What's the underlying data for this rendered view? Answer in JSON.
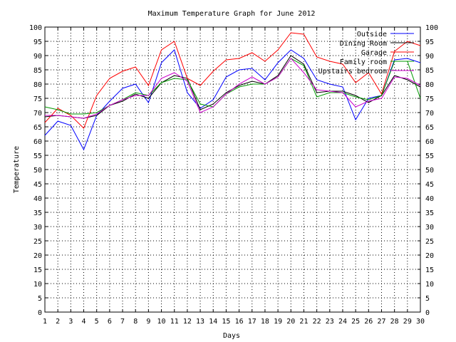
{
  "chart_data": {
    "type": "line",
    "title": "Maximum Temperature Graph for June 2012",
    "xlabel": "Days",
    "ylabel": "Temperature",
    "xlim": [
      1,
      30
    ],
    "ylim": [
      0,
      100
    ],
    "grid": true,
    "legend_position": "top-right",
    "x": [
      1,
      2,
      3,
      4,
      5,
      6,
      7,
      8,
      9,
      10,
      11,
      12,
      13,
      14,
      15,
      16,
      17,
      18,
      19,
      20,
      21,
      22,
      23,
      24,
      25,
      26,
      27,
      28,
      29,
      30
    ],
    "xticks": [
      "1",
      "2",
      "3",
      "4",
      "5",
      "6",
      "7",
      "8",
      "9",
      "10",
      "11",
      "12",
      "13",
      "14",
      "15",
      "16",
      "17",
      "18",
      "19",
      "20",
      "21",
      "22",
      "23",
      "24",
      "25",
      "26",
      "27",
      "28",
      "29",
      "30"
    ],
    "yticks": [
      "0",
      "5",
      "10",
      "15",
      "20",
      "25",
      "30",
      "35",
      "40",
      "45",
      "50",
      "55",
      "60",
      "65",
      "70",
      "75",
      "80",
      "85",
      "90",
      "95",
      "100"
    ],
    "series": [
      {
        "name": "Outside",
        "color": "#0000ff",
        "values": [
          62,
          67,
          65.5,
          57,
          69,
          74,
          78.5,
          80,
          73.5,
          87.5,
          92,
          77,
          71.5,
          74.5,
          82.5,
          85,
          85.5,
          81.5,
          87.5,
          92,
          89,
          81.5,
          80,
          79,
          67.5,
          75,
          76,
          88.5,
          89,
          87.5
        ]
      },
      {
        "name": "Dining Room",
        "color": "#000000",
        "values": [
          68.5,
          69,
          68.5,
          68,
          69,
          72.5,
          74,
          76.5,
          75,
          80.5,
          83,
          82,
          71,
          73,
          77,
          79.5,
          81,
          80,
          83,
          90,
          87,
          77,
          77.5,
          77.5,
          76,
          73.5,
          76,
          83,
          81.5,
          79
        ]
      },
      {
        "name": "Garage",
        "color": "#ff0000",
        "values": [
          66.5,
          71.5,
          69,
          64.5,
          76,
          82,
          84.5,
          86,
          79.5,
          92,
          95,
          82,
          79.5,
          84.5,
          88.5,
          89,
          91,
          88,
          92,
          98,
          97.5,
          89.5,
          88,
          87,
          80.5,
          84,
          76.5,
          91.5,
          95,
          93.5
        ]
      },
      {
        "name": "Family room",
        "color": "#009900",
        "values": [
          72,
          71,
          69.5,
          69.5,
          70,
          72.5,
          74.5,
          77,
          76,
          80.5,
          82,
          81.5,
          73,
          72,
          76.5,
          79,
          80,
          80,
          82.5,
          89,
          86.5,
          75.5,
          77,
          77,
          75.5,
          74.5,
          76,
          88,
          88,
          75
        ]
      },
      {
        "name": "Upstairs bedroom",
        "color": "#cc00cc",
        "values": [
          69,
          69,
          68.5,
          68,
          69.5,
          72.5,
          74.5,
          76,
          76,
          82,
          84,
          81,
          70,
          72,
          76.5,
          80,
          82.5,
          80,
          82.5,
          89,
          84,
          78,
          77.5,
          77,
          72,
          74,
          75,
          82.5,
          82,
          79.5
        ]
      }
    ]
  }
}
